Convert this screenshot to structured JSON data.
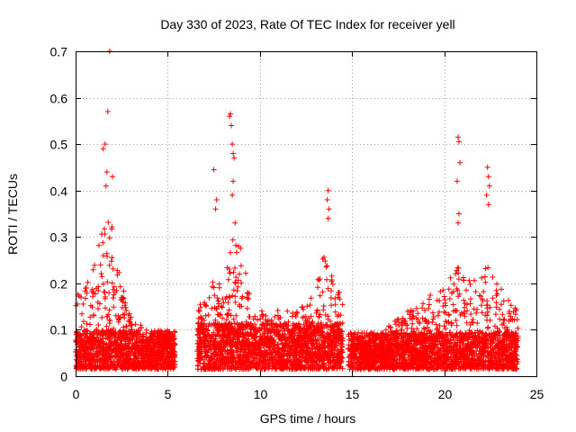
{
  "chart_data": {
    "type": "scatter",
    "title": "Day 330 of 2023, Rate Of TEC Index for receiver yell",
    "xlabel": "GPS time / hours",
    "ylabel": "ROTI / TECUs",
    "xlim": [
      0,
      25
    ],
    "ylim": [
      0,
      0.7
    ],
    "xticks": [
      0,
      5,
      10,
      15,
      20,
      25
    ],
    "yticks": [
      0,
      0.1,
      0.2,
      0.3,
      0.4,
      0.5,
      0.6,
      0.7
    ],
    "xtick_labels": [
      "0",
      "5",
      "10",
      "15",
      "20",
      "25"
    ],
    "ytick_labels": [
      "0",
      "0.1",
      "0.2",
      "0.3",
      "0.4",
      "0.5",
      "0.6",
      "0.7"
    ],
    "grid": true,
    "marker": "+",
    "color": "#ff0000",
    "series": [
      {
        "name": "ROTI",
        "segments": [
          {
            "start": 0.0,
            "end": 5.4,
            "base": 0.06,
            "spread": 0.04
          },
          {
            "start": 6.6,
            "end": 14.5,
            "base": 0.07,
            "spread": 0.05
          },
          {
            "start": 14.8,
            "end": 24.0,
            "base": 0.055,
            "spread": 0.04
          }
        ],
        "envelope": [
          [
            0.0,
            0.16
          ],
          [
            0.3,
            0.2
          ],
          [
            0.8,
            0.22
          ],
          [
            1.2,
            0.28
          ],
          [
            1.6,
            0.36
          ],
          [
            1.9,
            0.38
          ],
          [
            2.1,
            0.32
          ],
          [
            2.5,
            0.2
          ],
          [
            3.0,
            0.13
          ],
          [
            4.0,
            0.1
          ],
          [
            5.4,
            0.09
          ],
          [
            6.6,
            0.16
          ],
          [
            7.0,
            0.16
          ],
          [
            7.6,
            0.22
          ],
          [
            8.0,
            0.2
          ],
          [
            8.5,
            0.3
          ],
          [
            9.0,
            0.28
          ],
          [
            9.5,
            0.18
          ],
          [
            10.0,
            0.14
          ],
          [
            11.0,
            0.15
          ],
          [
            12.0,
            0.14
          ],
          [
            13.0,
            0.18
          ],
          [
            13.6,
            0.3
          ],
          [
            14.0,
            0.2
          ],
          [
            14.5,
            0.17
          ],
          [
            14.8,
            0.1
          ],
          [
            16.0,
            0.09
          ],
          [
            17.0,
            0.11
          ],
          [
            18.0,
            0.14
          ],
          [
            19.0,
            0.17
          ],
          [
            20.0,
            0.19
          ],
          [
            20.7,
            0.24
          ],
          [
            21.5,
            0.2
          ],
          [
            22.3,
            0.24
          ],
          [
            23.0,
            0.2
          ],
          [
            24.0,
            0.14
          ]
        ],
        "outliers": [
          [
            1.85,
            0.7
          ],
          [
            1.75,
            0.57
          ],
          [
            1.6,
            0.5
          ],
          [
            1.5,
            0.49
          ],
          [
            1.7,
            0.44
          ],
          [
            2.0,
            0.43
          ],
          [
            1.65,
            0.41
          ],
          [
            7.5,
            0.445
          ],
          [
            7.65,
            0.38
          ],
          [
            7.6,
            0.36
          ],
          [
            8.35,
            0.56
          ],
          [
            8.4,
            0.565
          ],
          [
            8.45,
            0.54
          ],
          [
            8.5,
            0.5
          ],
          [
            8.55,
            0.48
          ],
          [
            8.6,
            0.47
          ],
          [
            8.55,
            0.42
          ],
          [
            8.5,
            0.39
          ],
          [
            8.65,
            0.33
          ],
          [
            13.7,
            0.4
          ],
          [
            13.65,
            0.38
          ],
          [
            13.75,
            0.36
          ],
          [
            13.7,
            0.34
          ],
          [
            20.75,
            0.515
          ],
          [
            20.8,
            0.505
          ],
          [
            20.85,
            0.46
          ],
          [
            20.7,
            0.42
          ],
          [
            20.8,
            0.35
          ],
          [
            20.75,
            0.33
          ],
          [
            22.35,
            0.45
          ],
          [
            22.4,
            0.43
          ],
          [
            22.45,
            0.41
          ],
          [
            22.3,
            0.39
          ],
          [
            22.4,
            0.37
          ]
        ]
      }
    ]
  }
}
